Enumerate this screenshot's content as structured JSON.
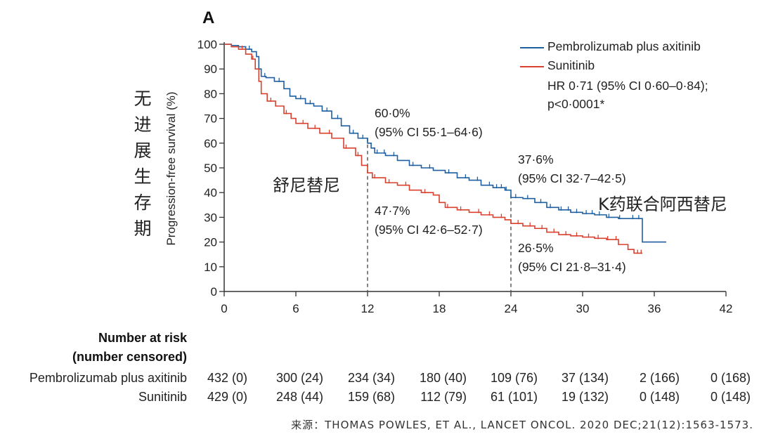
{
  "panel_label": "A",
  "cn_ylabel": "无进展生存期",
  "cn_label_sunitinib": "舒尼替尼",
  "cn_label_combo": "K药联合阿西替尼",
  "source": "来源：THOMAS POWLES, ET AL., LANCET ONCOL. 2020 DEC;21(12):1563-1573.",
  "legend": {
    "pembro": "Pembrolizumab plus axitinib",
    "sunitinib": "Sunitinib",
    "hr_line1": "HR 0·71 (95% CI 0·60–0·84);",
    "hr_line2": "p<0·0001*"
  },
  "annotations": {
    "pembro_12_value": "60·0%",
    "pembro_12_ci": "(95% CI 55·1–64·6)",
    "suni_12_value": "47·7%",
    "suni_12_ci": "(95% CI 42·6–52·7)",
    "pembro_24_value": "37·6%",
    "pembro_24_ci": "(95% CI 32·7–42·5)",
    "suni_24_value": "26·5%",
    "suni_24_ci": "(95% CI 21·8–31·4)"
  },
  "risk_table": {
    "title_line1": "Number at risk",
    "title_line2": "(number censored)",
    "rows": [
      {
        "name": "Pembrolizumab plus axitinib",
        "cells": [
          "432 (0)",
          "300 (24)",
          "234 (34)",
          "180 (40)",
          "109 (76)",
          "37 (134)",
          "2 (166)",
          "0 (168)"
        ]
      },
      {
        "name": "Sunitinib",
        "cells": [
          "429 (0)",
          "248 (44)",
          "159 (68)",
          "112 (79)",
          "61 (101)",
          "19 (132)",
          "0 (148)",
          "0 (148)"
        ]
      }
    ]
  },
  "chart_data": {
    "type": "line",
    "subtype": "kaplan-meier step",
    "title": "A",
    "xlabel": "",
    "ylabel": "Progression-free survival (%)",
    "xlim": [
      0,
      42
    ],
    "ylim": [
      0,
      100
    ],
    "xticks": [
      0,
      6,
      12,
      18,
      24,
      30,
      36,
      42
    ],
    "yticks": [
      0,
      10,
      20,
      30,
      40,
      50,
      60,
      70,
      80,
      90,
      100
    ],
    "reference_lines_x": [
      12,
      24
    ],
    "colors": {
      "pembro": "#1f5fa0",
      "sunitinib": "#d9412e",
      "axis": "#333333",
      "ref": "#666666"
    },
    "series": [
      {
        "name": "Pembrolizumab plus axitinib",
        "key": "pembro",
        "points": [
          [
            0,
            100
          ],
          [
            0.6,
            99.5
          ],
          [
            1.2,
            99
          ],
          [
            1.8,
            98
          ],
          [
            2.3,
            97
          ],
          [
            2.7,
            95
          ],
          [
            2.9,
            90
          ],
          [
            3.1,
            87
          ],
          [
            3.5,
            86.5
          ],
          [
            4.2,
            85
          ],
          [
            5,
            82
          ],
          [
            5.5,
            79
          ],
          [
            6,
            78
          ],
          [
            6.8,
            76
          ],
          [
            7.5,
            75
          ],
          [
            8.2,
            73
          ],
          [
            9,
            70
          ],
          [
            9.8,
            67
          ],
          [
            10.5,
            64
          ],
          [
            11.2,
            62
          ],
          [
            12,
            60
          ],
          [
            12.3,
            58
          ],
          [
            12.6,
            56
          ],
          [
            13.5,
            55
          ],
          [
            14.5,
            53
          ],
          [
            15.5,
            51
          ],
          [
            16.5,
            50
          ],
          [
            17.5,
            49
          ],
          [
            18.5,
            48
          ],
          [
            19.5,
            46
          ],
          [
            20.5,
            45
          ],
          [
            21.5,
            43
          ],
          [
            22.5,
            42
          ],
          [
            23.5,
            41
          ],
          [
            24,
            38
          ],
          [
            25,
            37.6
          ],
          [
            26,
            36
          ],
          [
            27,
            34
          ],
          [
            28,
            33
          ],
          [
            29,
            32
          ],
          [
            30,
            31.5
          ],
          [
            31,
            31
          ],
          [
            32,
            30
          ],
          [
            33,
            29.5
          ],
          [
            34,
            29.5
          ],
          [
            34.9,
            29.5
          ],
          [
            35,
            20
          ],
          [
            37,
            20
          ]
        ],
        "censor_x": [
          2.1,
          3.4,
          4.6,
          6.4,
          7.2,
          8.6,
          9.5,
          10.8,
          11.6,
          12.8,
          13.4,
          14.2,
          15.8,
          17.2,
          18.8,
          20.2,
          21.2,
          22.2,
          22.8,
          23.2,
          23.6,
          24.4,
          25.4,
          26.5,
          27.3,
          28.2,
          28.8,
          29.5,
          30.3,
          30.8,
          31.4,
          32.2,
          33.1,
          34.2,
          34.7
        ]
      },
      {
        "name": "Sunitinib",
        "key": "sunitinib",
        "points": [
          [
            0,
            100
          ],
          [
            0.6,
            99
          ],
          [
            1.2,
            98
          ],
          [
            1.8,
            96
          ],
          [
            2.3,
            94
          ],
          [
            2.6,
            90
          ],
          [
            2.9,
            85
          ],
          [
            3.1,
            80
          ],
          [
            3.6,
            77
          ],
          [
            4.3,
            75
          ],
          [
            5,
            72
          ],
          [
            5.6,
            70
          ],
          [
            6,
            68
          ],
          [
            7,
            66
          ],
          [
            8,
            64
          ],
          [
            9,
            62
          ],
          [
            10,
            58
          ],
          [
            11,
            55
          ],
          [
            11.5,
            51
          ],
          [
            12,
            48
          ],
          [
            12.4,
            46
          ],
          [
            13.5,
            44
          ],
          [
            14.5,
            43
          ],
          [
            15.5,
            41
          ],
          [
            16.5,
            40
          ],
          [
            17.5,
            39
          ],
          [
            18,
            36
          ],
          [
            18.5,
            34
          ],
          [
            19.5,
            33
          ],
          [
            20.5,
            32
          ],
          [
            21.5,
            31
          ],
          [
            22.5,
            30
          ],
          [
            23.5,
            29
          ],
          [
            24,
            27.5
          ],
          [
            25,
            26.5
          ],
          [
            26,
            25.5
          ],
          [
            27,
            24
          ],
          [
            28,
            23
          ],
          [
            29,
            22.5
          ],
          [
            30,
            22
          ],
          [
            31,
            21.5
          ],
          [
            32,
            21
          ],
          [
            33,
            19
          ],
          [
            33.8,
            17
          ],
          [
            34.3,
            15.5
          ],
          [
            35,
            15.5
          ]
        ],
        "censor_x": [
          1.5,
          2.4,
          3.9,
          5.2,
          6.6,
          7.6,
          8.8,
          10.2,
          11.2,
          12.6,
          13.8,
          15.2,
          16.8,
          18.7,
          19.8,
          21.3,
          22.2,
          23.2,
          24.6,
          25.6,
          26.6,
          27.6,
          28.6,
          29.5,
          30.5,
          31.3,
          32.1,
          32.8,
          34.6,
          34.9
        ]
      }
    ]
  }
}
